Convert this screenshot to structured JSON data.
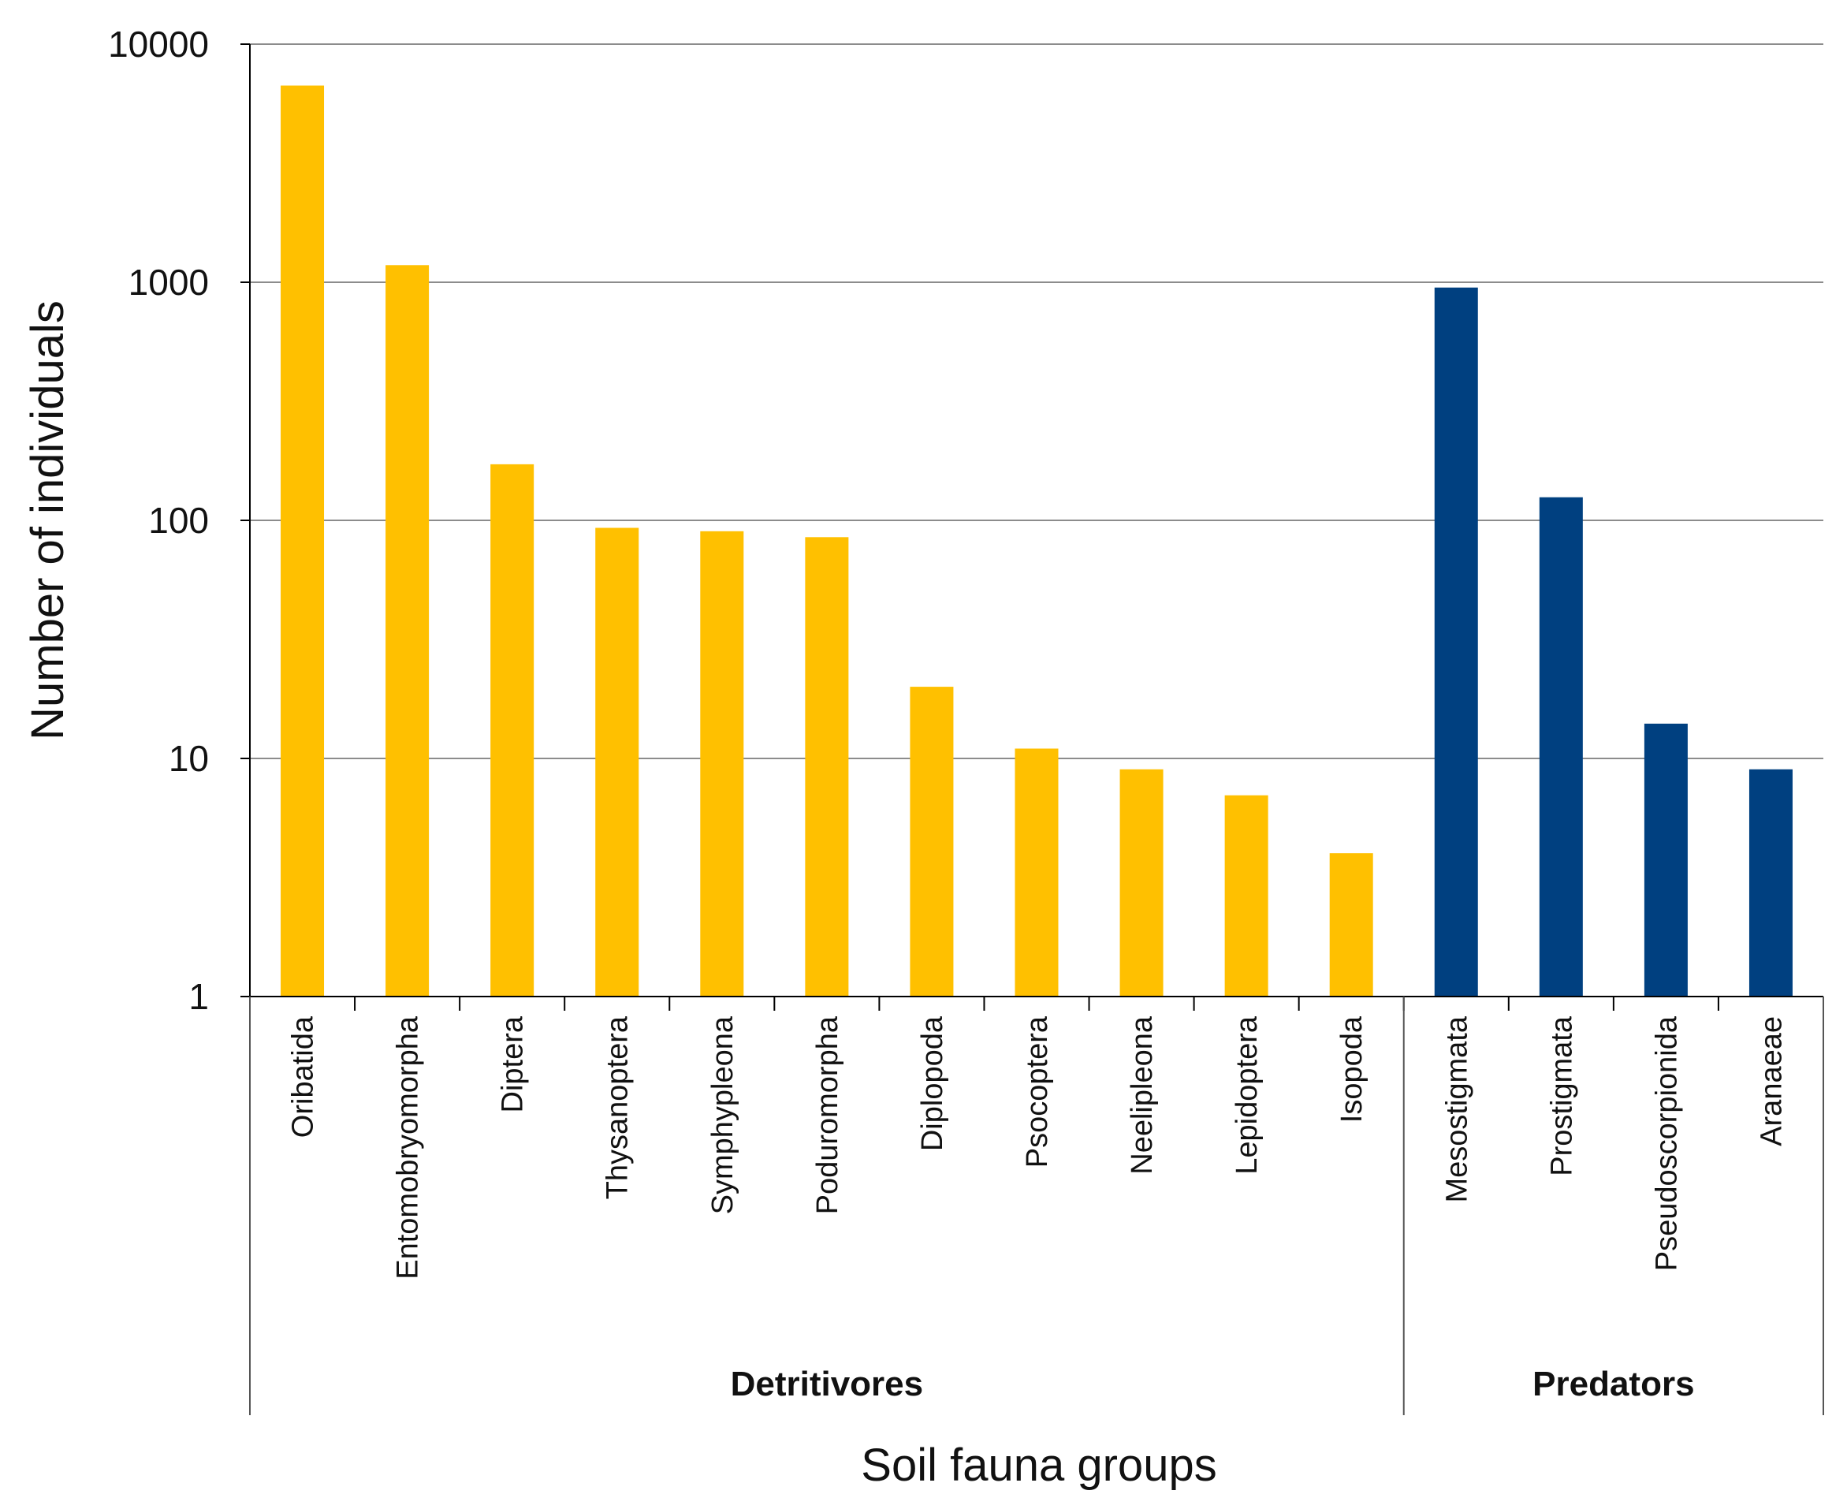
{
  "chart_data": {
    "type": "bar",
    "title": "",
    "xlabel": "Soil fauna groups",
    "ylabel": "Number of individuals",
    "y_scale": "log",
    "ylim": [
      1,
      10000
    ],
    "y_ticks": [
      1,
      10,
      100,
      1000,
      10000
    ],
    "y_tick_labels": [
      "1",
      "10",
      "100",
      "1000",
      "10000"
    ],
    "grid": true,
    "categories": [
      "Oribatida",
      "Entomobryomorpha",
      "Diptera",
      "Thysanoptera",
      "Symphypleona",
      "Poduromorpha",
      "Diplopoda",
      "Psocoptera",
      "Neelipleona",
      "Lepidoptera",
      "Isopoda",
      "Mesostigmata",
      "Prostigmata",
      "Pseudoscorpionida",
      "Aranaeae"
    ],
    "values": [
      6700,
      1180,
      172,
      93,
      90,
      85,
      20,
      11,
      9,
      7,
      4,
      950,
      125,
      14,
      9
    ],
    "groups": [
      {
        "name": "Detritivores",
        "color": "#FFC000",
        "start": 0,
        "end": 10
      },
      {
        "name": "Predators",
        "color": "#004080",
        "start": 11,
        "end": 14
      }
    ]
  }
}
